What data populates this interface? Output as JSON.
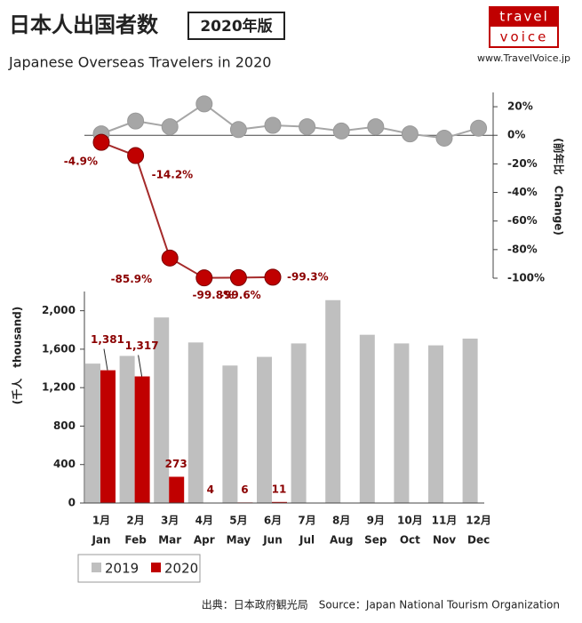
{
  "header": {
    "title": "日本人出国者数",
    "badge": "2020年版",
    "subtitle": "Japanese Overseas Travelers in 2020",
    "logo_top": "travel",
    "logo_bottom": "voice",
    "url": "www.TravelVoice.jp"
  },
  "source": "出典：日本政府観光局　Source：Japan National Tourism Organization",
  "chart_data": [
    {
      "type": "line",
      "y2_label": "(前年比　Change)",
      "series": [
        {
          "name": "2019",
          "color": "#a6a6a6",
          "values": [
            1,
            10,
            6,
            22,
            4,
            7,
            6,
            3,
            6,
            1,
            -2,
            5
          ]
        },
        {
          "name": "2020",
          "color": "#c00000",
          "values": [
            -4.9,
            -14.2,
            -85.9,
            -99.8,
            -99.6,
            -99.3,
            null,
            null,
            null,
            null,
            null,
            null
          ],
          "value_labels": [
            "-4.9%",
            "-14.2%",
            "-85.9%",
            "-99.8%",
            "-99.6%",
            "-99.3%",
            null,
            null,
            null,
            null,
            null,
            null
          ]
        }
      ],
      "y2lim": [
        -100,
        30
      ],
      "y2ticks": [
        {
          "value": 20,
          "label": "20%"
        },
        {
          "value": 0,
          "label": "0%"
        },
        {
          "value": -20,
          "label": "-20%"
        },
        {
          "value": -40,
          "label": "-40%"
        },
        {
          "value": -60,
          "label": "-60%"
        },
        {
          "value": -80,
          "label": "-80%"
        },
        {
          "value": -100,
          "label": "-100%"
        }
      ]
    },
    {
      "type": "bar",
      "y_label": "(千人　thousand)",
      "categories": [
        "1月",
        "2月",
        "3月",
        "4月",
        "5月",
        "6月",
        "7月",
        "8月",
        "9月",
        "10月",
        "11月",
        "12月"
      ],
      "categories_en": [
        "Jan",
        "Feb",
        "Mar",
        "Apr",
        "May",
        "Jun",
        "Jul",
        "Aug",
        "Sep",
        "Oct",
        "Nov",
        "Dec"
      ],
      "series": [
        {
          "name": "2019",
          "color": "#bfbfbf",
          "values": [
            1450,
            1530,
            1930,
            1670,
            1430,
            1520,
            1660,
            2110,
            1750,
            1660,
            1640,
            1710
          ]
        },
        {
          "name": "2020",
          "color": "#c00000",
          "values": [
            1381,
            1317,
            273,
            4,
            6,
            11,
            null,
            null,
            null,
            null,
            null,
            null
          ],
          "value_labels": [
            "1,381",
            "1,317",
            "273",
            "4",
            "6",
            "11",
            null,
            null,
            null,
            null,
            null,
            null
          ]
        }
      ],
      "ylim": [
        0,
        2200
      ],
      "yticks": [
        0,
        400,
        800,
        {
          "value": 1200,
          "label": "1,200"
        },
        {
          "value": 1600,
          "label": "1,600"
        },
        {
          "value": 2000,
          "label": "2,000"
        }
      ],
      "legend": "bottom-left"
    }
  ]
}
